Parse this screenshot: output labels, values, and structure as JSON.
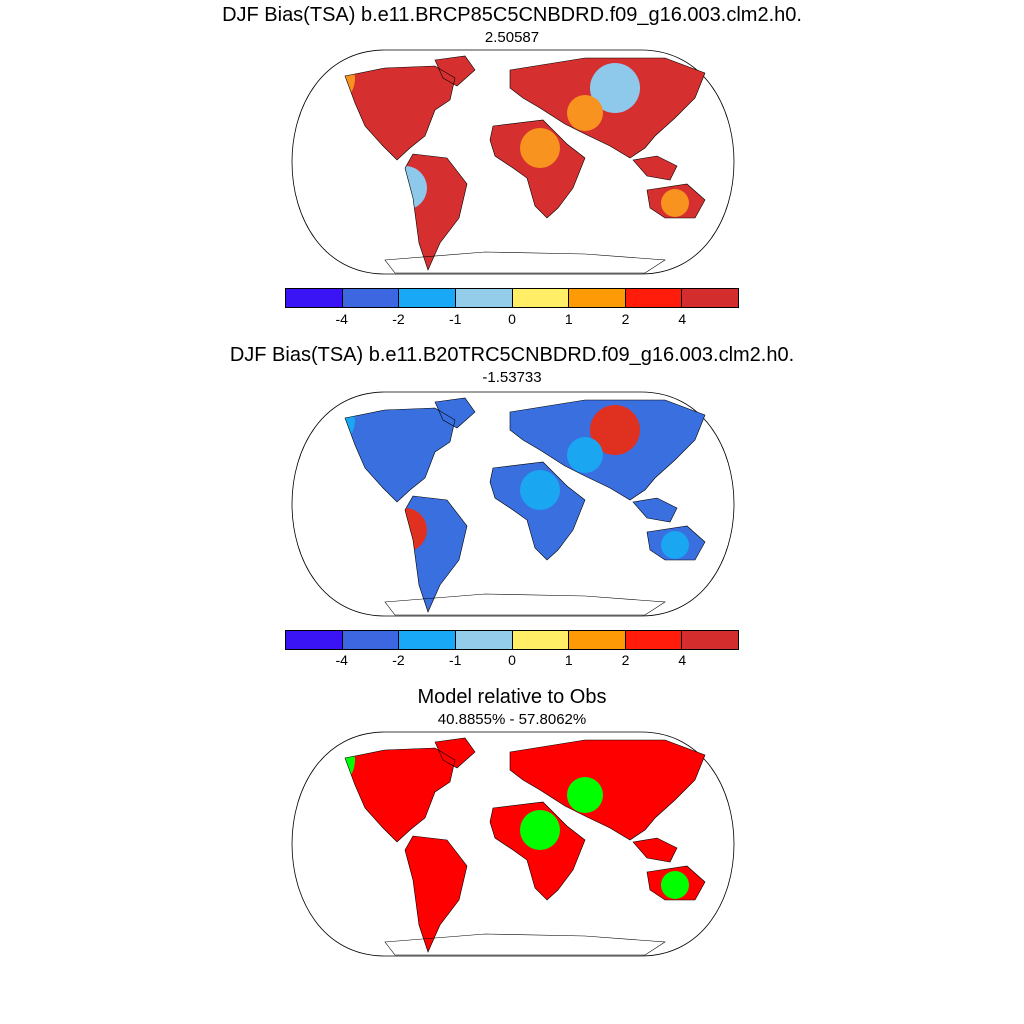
{
  "panels": [
    {
      "title": "DJF Bias(TSA) b.e11.BRCP85C5CNBDRD.f09_g16.003.clm2.h0.",
      "subtitle": "2.50587",
      "dominant_color": "#d62f2f",
      "secondary_color": "#f7931e",
      "tertiary_color": "#8ec8ea"
    },
    {
      "title": "DJF Bias(TSA) b.e11.B20TRC5CNBDRD.f09_g16.003.clm2.h0.",
      "subtitle": "-1.53733",
      "dominant_color": "#3a6fe0",
      "secondary_color": "#1aa6f0",
      "tertiary_color": "#e0301f"
    },
    {
      "title": "Model relative to Obs",
      "subtitle": "40.8855% - 57.8062%",
      "dominant_color": "#ff0000",
      "secondary_color": "#00ff00",
      "tertiary_color": "#ff0000"
    }
  ],
  "colorbar": {
    "colors": [
      "#3b14f5",
      "#3d67e0",
      "#18a8f6",
      "#94cdea",
      "#ffee66",
      "#fe9a05",
      "#ff1c0a",
      "#d42d2d"
    ],
    "tick_labels": [
      "-4",
      "-2",
      "-1",
      "0",
      "1",
      "2",
      "4"
    ]
  }
}
